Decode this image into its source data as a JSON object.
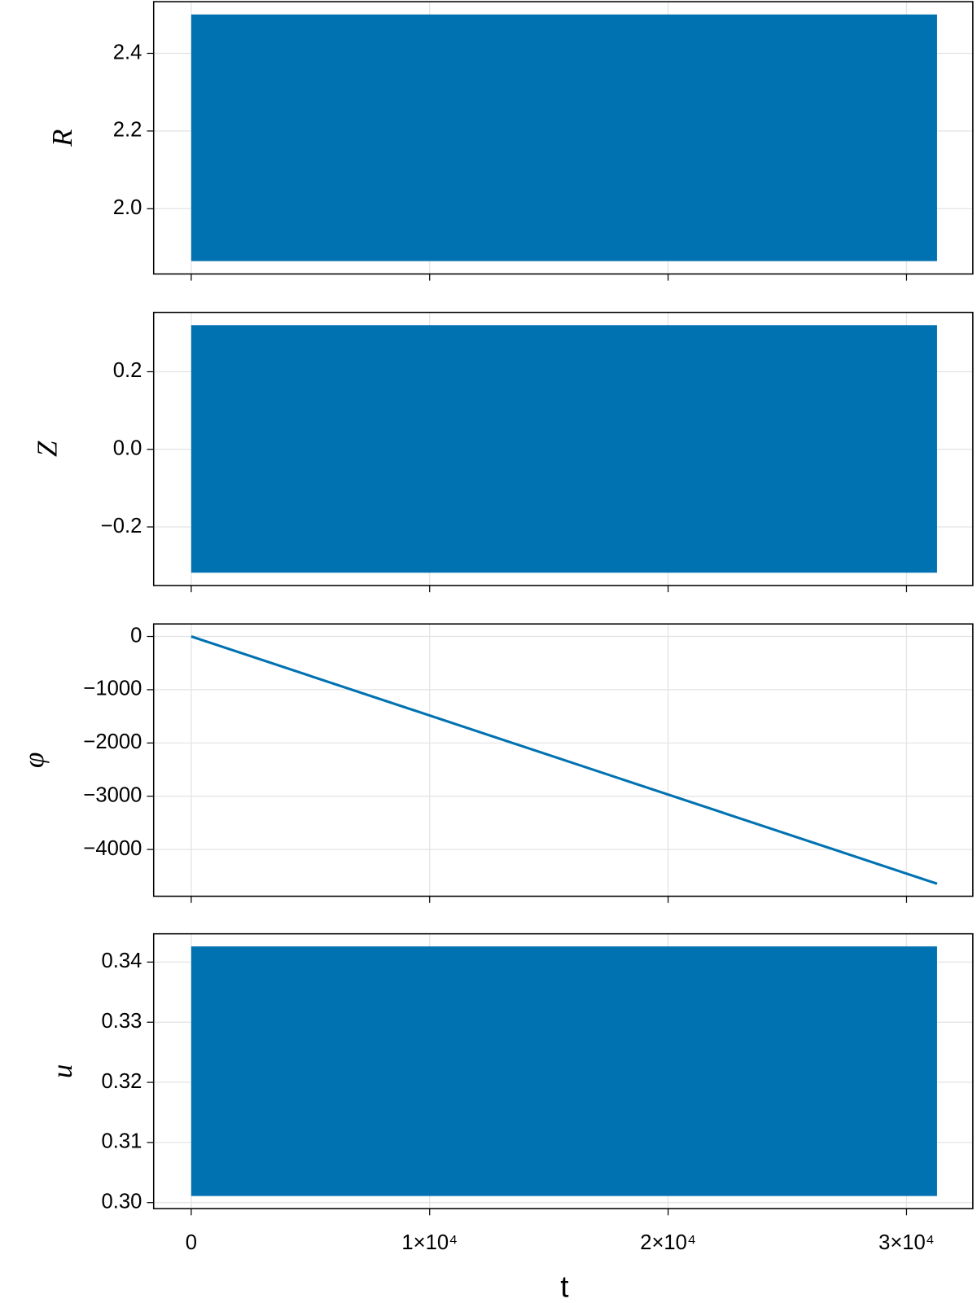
{
  "chart_data": [
    {
      "type": "band",
      "ylabel": "R",
      "x": [
        0,
        31280
      ],
      "lower": [
        1.865,
        1.865
      ],
      "upper": [
        2.5,
        2.5
      ],
      "color": "#0072b2",
      "ylim": [
        1.832,
        2.533
      ],
      "yticks": [
        {
          "value": 2,
          "label": "2.0"
        },
        2.2,
        2.4
      ],
      "grid": true
    },
    {
      "type": "band",
      "ylabel": "Z",
      "x": [
        0,
        31280
      ],
      "lower": [
        -0.318,
        -0.318
      ],
      "upper": [
        0.32,
        0.32
      ],
      "color": "#0072b2",
      "ylim": [
        -0.351,
        0.353
      ],
      "yticks": [
        {
          "value": -0.2,
          "label": "−0.2"
        },
        {
          "value": 0,
          "label": "0.0"
        },
        0.2
      ],
      "grid": true
    },
    {
      "type": "line",
      "ylabel": "φ",
      "x": [
        0,
        31280
      ],
      "values": [
        0,
        -4643
      ],
      "color": "#0072b2",
      "ylim": [
        -4878,
        235
      ],
      "yticks": [
        {
          "value": -4000,
          "label": "−4000"
        },
        {
          "value": -3000,
          "label": "−3000"
        },
        {
          "value": -2000,
          "label": "−2000"
        },
        {
          "value": -1000,
          "label": "−1000"
        },
        0
      ],
      "grid": true
    },
    {
      "type": "band",
      "ylabel": "u",
      "x": [
        0,
        31280
      ],
      "lower": [
        0.3011,
        0.3011
      ],
      "upper": [
        0.3426,
        0.3426
      ],
      "color": "#0072b2",
      "ylim": [
        0.299,
        0.3447
      ],
      "yticks": [
        {
          "value": 0.3,
          "label": "0.30"
        },
        0.31,
        0.32,
        0.33,
        0.34
      ],
      "grid": true
    }
  ],
  "shared_x": {
    "xlabel": "t",
    "xlim": [
      -1576,
      32780
    ],
    "xticks": [
      0,
      {
        "value": 10000,
        "label": "1×10⁴"
      },
      {
        "value": 20000,
        "label": "2×10⁴"
      },
      {
        "value": 30000,
        "label": "3×10⁴"
      }
    ]
  }
}
